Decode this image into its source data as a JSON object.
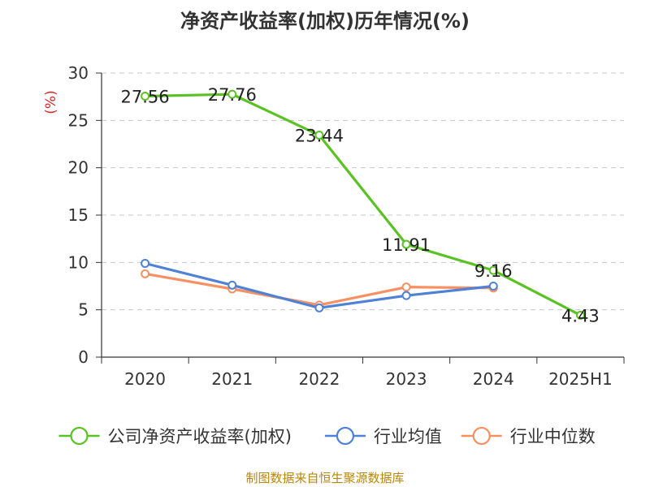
{
  "chart_data": {
    "type": "line",
    "title": "净资产收益率(加权)历年情况(%)",
    "ylabel": "(%)",
    "categories": [
      "2020",
      "2021",
      "2022",
      "2023",
      "2024",
      "2025H1"
    ],
    "ylim": [
      0,
      30
    ],
    "yticks": [
      0,
      5,
      10,
      15,
      20,
      25,
      30
    ],
    "grid": true,
    "legend_position": "bottom",
    "series": [
      {
        "name": "公司净资产收益率(加权)",
        "color": "#5bc225",
        "values": [
          27.56,
          27.76,
          23.44,
          11.91,
          9.16,
          4.43
        ],
        "labels": [
          "27.56",
          "27.76",
          "23.44",
          "11.91",
          "9.16",
          "4.43"
        ]
      },
      {
        "name": "行业均值",
        "color": "#4f81d6",
        "values": [
          9.9,
          7.6,
          5.2,
          6.5,
          7.5,
          null
        ]
      },
      {
        "name": "行业中位数",
        "color": "#f79163",
        "values": [
          8.8,
          7.2,
          5.5,
          7.4,
          7.3,
          null
        ]
      }
    ]
  },
  "source": "制图数据来自恒生聚源数据库"
}
